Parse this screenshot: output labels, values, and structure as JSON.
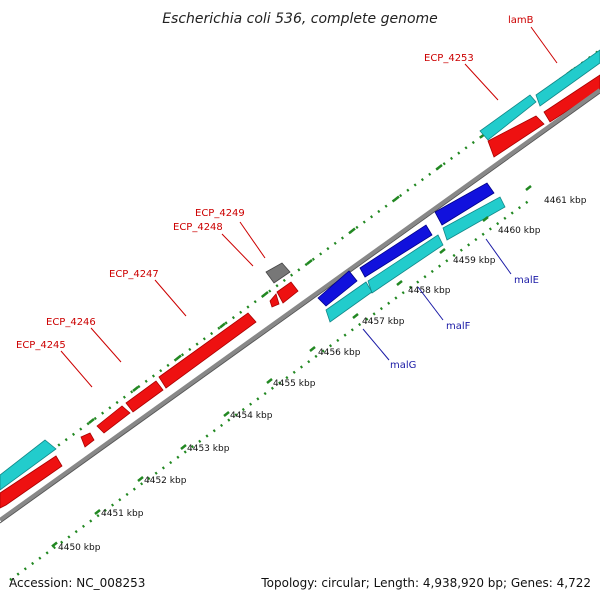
{
  "title": "Escherichia coli 536, complete genome",
  "footer": {
    "accession": "Accession: NC_008253",
    "summary": "Topology: circular; Length: 4,938,920 bp; Genes: 4,722"
  },
  "colors": {
    "forward_gene": "#ee1111",
    "reverse_gene": "#1111dd",
    "cyan_feature": "#22cccc",
    "gray_feature": "#777777",
    "backbone": "#888888",
    "tick": "#228822",
    "label_red": "#cc0000",
    "label_blue": "#1a1aa6"
  },
  "ticks": [
    {
      "label": "4450 kbp"
    },
    {
      "label": "4451 kbp"
    },
    {
      "label": "4452 kbp"
    },
    {
      "label": "4453 kbp"
    },
    {
      "label": "4454 kbp"
    },
    {
      "label": "4455 kbp"
    },
    {
      "label": "4456 kbp"
    },
    {
      "label": "4457 kbp"
    },
    {
      "label": "4458 kbp"
    },
    {
      "label": "4459 kbp"
    },
    {
      "label": "4460 kbp"
    },
    {
      "label": "4461 kbp"
    }
  ],
  "gene_labels": {
    "ECP_4245": "ECP_4245",
    "ECP_4246": "ECP_4246",
    "ECP_4247": "ECP_4247",
    "ECP_4248": "ECP_4248",
    "ECP_4249": "ECP_4249",
    "ECP_4253": "ECP_4253",
    "lamB": "lamB",
    "malE": "malE",
    "malF": "malF",
    "malG": "malG"
  }
}
